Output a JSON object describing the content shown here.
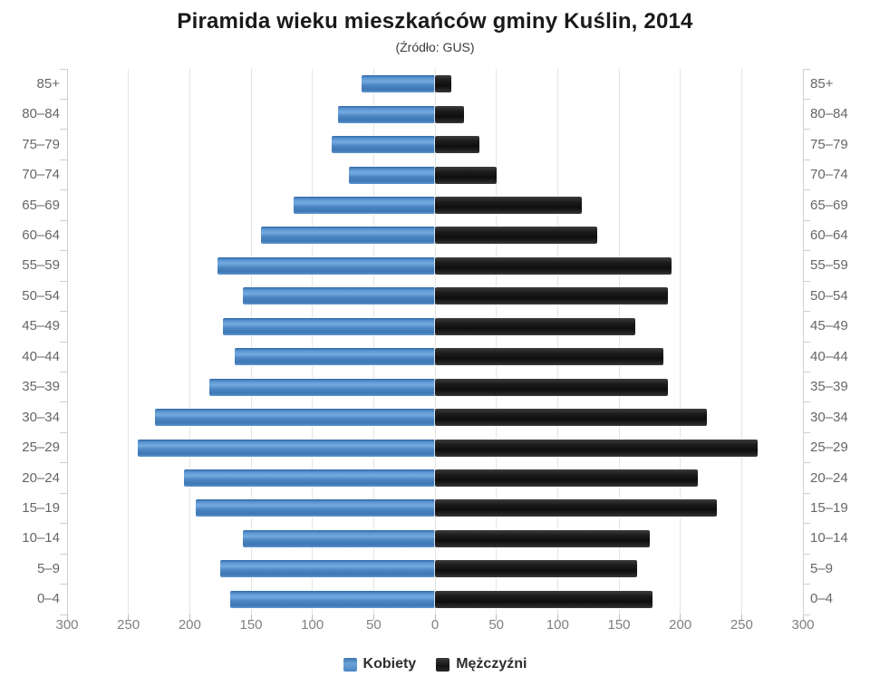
{
  "title": "Piramida wieku mieszkańców gminy Kuślin, 2014",
  "subtitle": "(Źródło: GUS)",
  "legend": {
    "items": [
      {
        "label": "Kobiety",
        "color": "#4a86c6"
      },
      {
        "label": "Mężczyźni",
        "color": "#1a1a1a"
      }
    ],
    "position": "bottom"
  },
  "chart_data": {
    "type": "bar",
    "variant": "population-pyramid",
    "title": "Piramida wieku mieszkańców gminy Kuślin, 2014",
    "subtitle": "(Źródło: GUS)",
    "categories": [
      "85+",
      "80–84",
      "75–79",
      "70–74",
      "65–69",
      "60–64",
      "55–59",
      "50–54",
      "45–49",
      "40–44",
      "35–39",
      "30–34",
      "25–29",
      "20–24",
      "15–19",
      "10–14",
      "5–9",
      "0–4"
    ],
    "series": [
      {
        "name": "Kobiety",
        "side": "left",
        "color": "#4a86c6",
        "values": [
          60,
          79,
          84,
          70,
          115,
          142,
          177,
          157,
          173,
          163,
          184,
          228,
          242,
          205,
          195,
          157,
          175,
          167
        ]
      },
      {
        "name": "Mężczyźni",
        "side": "right",
        "color": "#1a1a1a",
        "values": [
          13,
          24,
          36,
          50,
          120,
          132,
          193,
          190,
          163,
          186,
          190,
          222,
          263,
          214,
          230,
          175,
          165,
          177
        ]
      }
    ],
    "xlabel": "",
    "ylabel": "",
    "xlim": [
      -300,
      300
    ],
    "axis_tick_step": 50,
    "axis_tick_labels": [
      "300",
      "250",
      "200",
      "150",
      "100",
      "50",
      "0",
      "50",
      "100",
      "150",
      "200",
      "250",
      "300"
    ],
    "grid": true,
    "legend_position": "bottom"
  }
}
